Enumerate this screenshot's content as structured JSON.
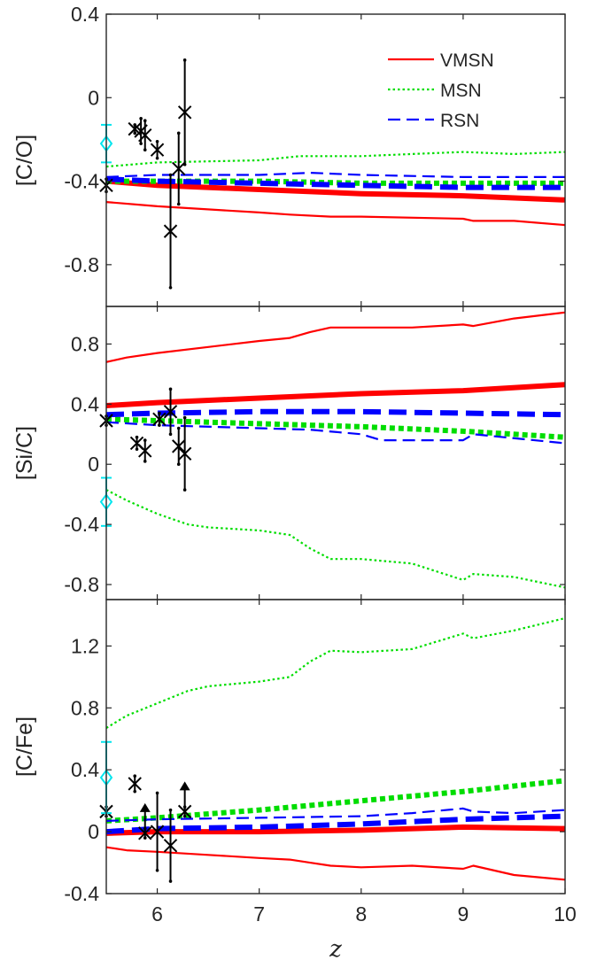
{
  "chart_data": {
    "type": "line",
    "xlabel": "z",
    "xlim": [
      5.5,
      10
    ],
    "xticks": [
      6,
      7,
      8,
      9,
      10
    ],
    "xtick_labels": [
      "6",
      "7",
      "8",
      "9",
      "10"
    ],
    "legend": {
      "placement": "top-right",
      "entries": [
        {
          "label": "VMSN",
          "color": "#ff0000",
          "style": "solid"
        },
        {
          "label": "MSN",
          "color": "#00dd00",
          "style": "dotted"
        },
        {
          "label": "RSN",
          "color": "#0000ff",
          "style": "dashed"
        }
      ]
    },
    "panels": [
      {
        "ylabel": "[C/O]",
        "ylim": [
          -1.0,
          0.4
        ],
        "yticks": [
          -0.8,
          -0.4,
          0,
          0.4
        ],
        "ytick_labels": [
          "-0.8",
          "-0.4",
          "0",
          "0.4"
        ],
        "series": [
          {
            "color": "#ff0000",
            "style": "solid",
            "weight": "thick",
            "x": [
              5.5,
              6,
              7,
              8,
              9,
              10
            ],
            "y": [
              -0.4,
              -0.42,
              -0.44,
              -0.46,
              -0.47,
              -0.49
            ]
          },
          {
            "color": "#ff0000",
            "style": "solid",
            "weight": "thin",
            "x": [
              5.5,
              6,
              7,
              7.3,
              7.7,
              8,
              9,
              9.1,
              9.5,
              10
            ],
            "y": [
              -0.5,
              -0.52,
              -0.55,
              -0.56,
              -0.57,
              -0.57,
              -0.58,
              -0.59,
              -0.59,
              -0.61
            ]
          },
          {
            "color": "#00dd00",
            "style": "dotted",
            "weight": "thick",
            "x": [
              5.5,
              6,
              7,
              8,
              9,
              10
            ],
            "y": [
              -0.4,
              -0.4,
              -0.4,
              -0.41,
              -0.41,
              -0.41
            ]
          },
          {
            "color": "#00dd00",
            "style": "dotted",
            "weight": "thin",
            "x": [
              5.5,
              6,
              7,
              7.4,
              8,
              8.5,
              9,
              9.5,
              10
            ],
            "y": [
              -0.33,
              -0.31,
              -0.3,
              -0.28,
              -0.28,
              -0.27,
              -0.26,
              -0.27,
              -0.26
            ]
          },
          {
            "color": "#0000ff",
            "style": "dashed",
            "weight": "thick",
            "x": [
              5.5,
              6,
              7,
              8,
              9,
              10
            ],
            "y": [
              -0.39,
              -0.4,
              -0.41,
              -0.42,
              -0.43,
              -0.43
            ]
          },
          {
            "color": "#0000ff",
            "style": "dashed",
            "weight": "thin",
            "x": [
              5.5,
              6,
              7,
              7.5,
              8,
              9,
              10
            ],
            "y": [
              -0.38,
              -0.37,
              -0.37,
              -0.36,
              -0.37,
              -0.38,
              -0.38
            ]
          }
        ],
        "points": [
          {
            "x": 5.5,
            "y": -0.42,
            "err": 0.03
          },
          {
            "x": 5.78,
            "y": -0.15,
            "err": 0.02
          },
          {
            "x": 5.84,
            "y": -0.16,
            "err": 0.06
          },
          {
            "x": 5.88,
            "y": -0.18,
            "err": 0.07
          },
          {
            "x": 6.0,
            "y": -0.25,
            "err": 0.04
          },
          {
            "x": 6.13,
            "y": -0.64,
            "err": 0.27
          },
          {
            "x": 6.21,
            "y": -0.34,
            "err": 0.17
          },
          {
            "x": 6.27,
            "y": -0.07,
            "err": 0.25
          }
        ],
        "diamond": {
          "x": 5.5,
          "y": -0.22,
          "err_up": 0.09,
          "err_down": 0.09
        }
      },
      {
        "ylabel": "[Si/C]",
        "ylim": [
          -0.9,
          1.05
        ],
        "yticks": [
          -0.8,
          -0.4,
          0,
          0.4,
          0.8
        ],
        "ytick_labels": [
          "-0.8",
          "-0.4",
          "0",
          "0.4",
          "0.8"
        ],
        "series": [
          {
            "color": "#ff0000",
            "style": "solid",
            "weight": "thick",
            "x": [
              5.5,
              6,
              7,
              8,
              9,
              10
            ],
            "y": [
              0.39,
              0.41,
              0.44,
              0.47,
              0.49,
              0.53
            ]
          },
          {
            "color": "#ff0000",
            "style": "solid",
            "weight": "thin",
            "x": [
              5.5,
              5.7,
              6,
              6.5,
              7,
              7.3,
              7.5,
              7.7,
              8,
              8.5,
              9,
              9.1,
              9.5,
              10
            ],
            "y": [
              0.68,
              0.71,
              0.74,
              0.78,
              0.82,
              0.84,
              0.88,
              0.91,
              0.91,
              0.91,
              0.93,
              0.92,
              0.97,
              1.01
            ]
          },
          {
            "color": "#00dd00",
            "style": "dotted",
            "weight": "thick",
            "x": [
              5.5,
              6,
              7,
              8,
              9,
              10
            ],
            "y": [
              0.3,
              0.29,
              0.27,
              0.25,
              0.22,
              0.18
            ]
          },
          {
            "color": "#00dd00",
            "style": "dotted",
            "weight": "thin",
            "x": [
              5.5,
              5.7,
              6,
              6.3,
              6.5,
              7,
              7.3,
              7.5,
              7.7,
              8,
              8.5,
              9,
              9.1,
              9.5,
              10
            ],
            "y": [
              -0.17,
              -0.24,
              -0.33,
              -0.4,
              -0.42,
              -0.44,
              -0.47,
              -0.56,
              -0.63,
              -0.63,
              -0.66,
              -0.77,
              -0.73,
              -0.75,
              -0.82
            ]
          },
          {
            "color": "#0000ff",
            "style": "dashed",
            "weight": "thick",
            "x": [
              5.5,
              6,
              7,
              8,
              9,
              10
            ],
            "y": [
              0.33,
              0.34,
              0.35,
              0.35,
              0.34,
              0.33
            ]
          },
          {
            "color": "#0000ff",
            "style": "dashed",
            "weight": "thin",
            "x": [
              5.5,
              6,
              7,
              7.5,
              8,
              8.2,
              9,
              9.1,
              10
            ],
            "y": [
              0.28,
              0.26,
              0.24,
              0.23,
              0.2,
              0.16,
              0.16,
              0.2,
              0.14
            ]
          }
        ],
        "points": [
          {
            "x": 5.5,
            "y": 0.29,
            "err": 0.03
          },
          {
            "x": 5.8,
            "y": 0.14,
            "err": 0.04
          },
          {
            "x": 5.88,
            "y": 0.09,
            "err": 0.07
          },
          {
            "x": 6.02,
            "y": 0.3,
            "err": 0.04
          },
          {
            "x": 6.13,
            "y": 0.35,
            "err": 0.15
          },
          {
            "x": 6.21,
            "y": 0.12,
            "err": 0.12
          },
          {
            "x": 6.27,
            "y": 0.07,
            "err": 0.24
          }
        ],
        "diamond": {
          "x": 5.5,
          "y": -0.25,
          "err_up": 0.16,
          "err_down": 0.16
        }
      },
      {
        "ylabel": "[C/Fe]",
        "ylim": [
          -0.4,
          1.5
        ],
        "yticks": [
          -0.4,
          0,
          0.4,
          0.8,
          1.2
        ],
        "ytick_labels": [
          "-0.4",
          "0",
          "0.4",
          "0.8",
          "1.2"
        ],
        "series": [
          {
            "color": "#ff0000",
            "style": "solid",
            "weight": "thick",
            "x": [
              5.5,
              6,
              7,
              8,
              9,
              10
            ],
            "y": [
              -0.01,
              0.0,
              0.0,
              0.01,
              0.03,
              0.02
            ]
          },
          {
            "color": "#ff0000",
            "style": "solid",
            "weight": "thin",
            "x": [
              5.5,
              5.7,
              6,
              6.5,
              7,
              7.3,
              7.5,
              7.7,
              8,
              8.5,
              9,
              9.1,
              9.5,
              10
            ],
            "y": [
              -0.1,
              -0.12,
              -0.13,
              -0.15,
              -0.17,
              -0.18,
              -0.2,
              -0.22,
              -0.23,
              -0.22,
              -0.24,
              -0.22,
              -0.28,
              -0.31
            ]
          },
          {
            "color": "#00dd00",
            "style": "dotted",
            "weight": "thick",
            "x": [
              5.5,
              6,
              7,
              8,
              9,
              10
            ],
            "y": [
              0.07,
              0.09,
              0.14,
              0.2,
              0.26,
              0.33
            ]
          },
          {
            "color": "#00dd00",
            "style": "dotted",
            "weight": "thin",
            "x": [
              5.5,
              5.7,
              6,
              6.3,
              6.5,
              7,
              7.3,
              7.5,
              7.7,
              8,
              8.5,
              9,
              9.1,
              9.5,
              10
            ],
            "y": [
              0.67,
              0.75,
              0.83,
              0.91,
              0.94,
              0.97,
              1.0,
              1.1,
              1.17,
              1.16,
              1.18,
              1.28,
              1.25,
              1.3,
              1.38
            ]
          },
          {
            "color": "#0000ff",
            "style": "dashed",
            "weight": "thick",
            "x": [
              5.5,
              6,
              7,
              8,
              9,
              10
            ],
            "y": [
              0.0,
              0.02,
              0.03,
              0.05,
              0.08,
              0.1
            ]
          },
          {
            "color": "#0000ff",
            "style": "dashed",
            "weight": "thin",
            "x": [
              5.5,
              6,
              7,
              8,
              8.5,
              9,
              9.1,
              9.5,
              10
            ],
            "y": [
              0.07,
              0.08,
              0.09,
              0.1,
              0.12,
              0.15,
              0.13,
              0.12,
              0.14
            ]
          }
        ],
        "points": [
          {
            "x": 5.5,
            "y": 0.13,
            "err": 0.03
          },
          {
            "x": 5.78,
            "y": 0.31,
            "err": 0.05
          },
          {
            "x": 5.88,
            "y": -0.01,
            "err": 0.03,
            "arrow_up": true
          },
          {
            "x": 6.0,
            "y": 0.0,
            "err": 0.25
          },
          {
            "x": 6.13,
            "y": -0.09,
            "err": 0.23
          },
          {
            "x": 6.27,
            "y": 0.13,
            "err": 0.03,
            "arrow_up": true
          }
        ],
        "diamond": {
          "x": 5.5,
          "y": 0.35,
          "err_up": 0.23,
          "err_down": 0.23
        }
      }
    ]
  }
}
